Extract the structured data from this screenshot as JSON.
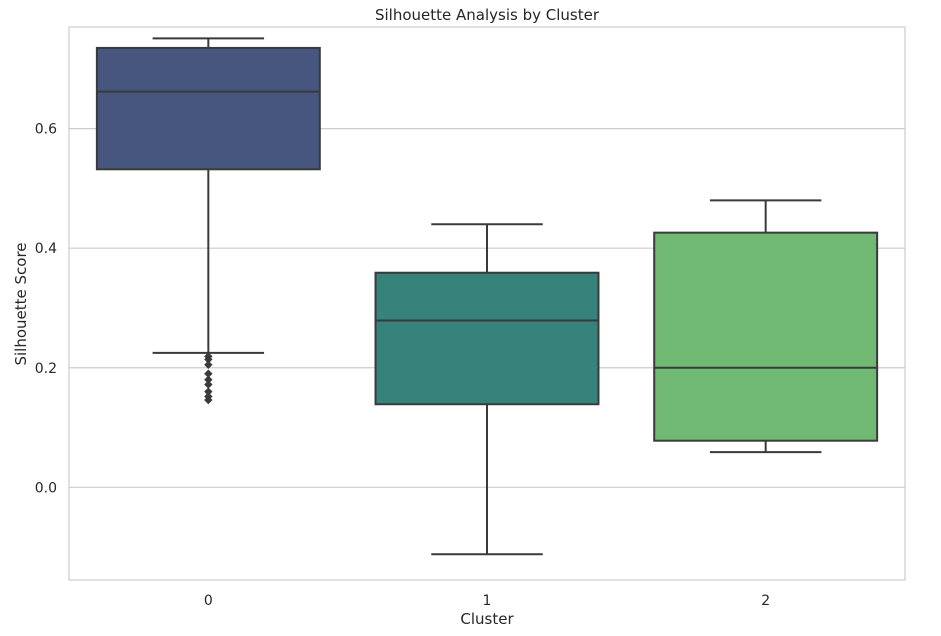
{
  "chart_data": {
    "type": "box",
    "title": "Silhouette Analysis by Cluster",
    "xlabel": "Cluster",
    "ylabel": "Silhouette Score",
    "ylim": [
      -0.155,
      0.77
    ],
    "yticks": [
      0.0,
      0.2,
      0.4,
      0.6
    ],
    "ytick_labels": [
      "0.0",
      "0.2",
      "0.4",
      "0.6"
    ],
    "grid": "horizontal",
    "categories": [
      "0",
      "1",
      "2"
    ],
    "boxes": [
      {
        "category": "0",
        "whisker_low": 0.225,
        "q1": 0.532,
        "median": 0.662,
        "q3": 0.735,
        "whisker_high": 0.751,
        "outliers": [
          0.219,
          0.214,
          0.205,
          0.19,
          0.18,
          0.172,
          0.16,
          0.152,
          0.146
        ],
        "color": "#46567f"
      },
      {
        "category": "1",
        "whisker_low": -0.112,
        "q1": 0.139,
        "median": 0.279,
        "q3": 0.359,
        "whisker_high": 0.44,
        "outliers": [],
        "color": "#35837b"
      },
      {
        "category": "2",
        "whisker_low": 0.059,
        "q1": 0.078,
        "median": 0.2,
        "q3": 0.426,
        "whisker_high": 0.48,
        "outliers": [],
        "color": "#6fb972"
      }
    ]
  }
}
